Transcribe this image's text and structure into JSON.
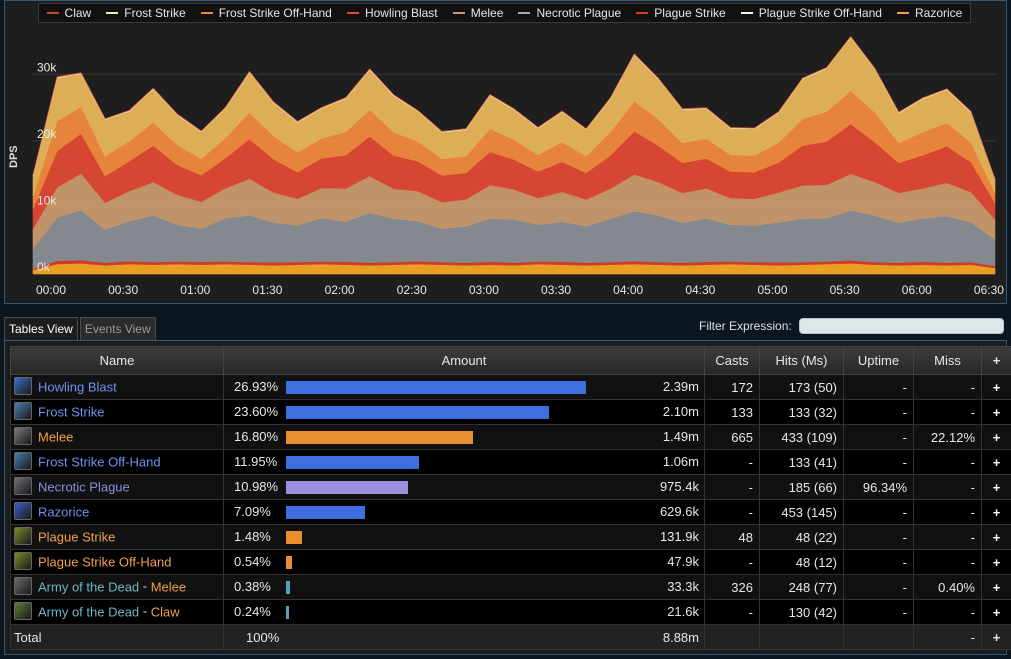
{
  "legend": [
    {
      "label": "Claw",
      "color": "#c9492d"
    },
    {
      "label": "Frost Strike",
      "color": "#f6e9b4"
    },
    {
      "label": "Frost Strike Off-Hand",
      "color": "#f28a3d"
    },
    {
      "label": "Howling Blast",
      "color": "#e04a35"
    },
    {
      "label": "Melee",
      "color": "#c99a6e"
    },
    {
      "label": "Necrotic Plague",
      "color": "#a9a9a9"
    },
    {
      "label": "Plague Strike",
      "color": "#d83b2a"
    },
    {
      "label": "Plague Strike Off-Hand",
      "color": "#f7f3e0"
    },
    {
      "label": "Razorice",
      "color": "#f0a04a"
    }
  ],
  "chart_data": {
    "type": "area",
    "stacked": true,
    "ylabel": "DPS",
    "ylim": [
      0,
      35000
    ],
    "yticks": [
      0,
      10000,
      20000,
      30000
    ],
    "ytick_labels": [
      "0k",
      "10k",
      "20k",
      "30k"
    ],
    "xlim": [
      0,
      400
    ],
    "xticks": [
      0,
      30,
      60,
      90,
      120,
      150,
      180,
      210,
      240,
      270,
      300,
      330,
      360,
      390
    ],
    "xtick_labels": [
      "00:00",
      "00:30",
      "01:00",
      "01:30",
      "02:00",
      "02:30",
      "03:00",
      "03:30",
      "04:00",
      "04:30",
      "05:00",
      "05:30",
      "06:00",
      "06:30"
    ],
    "grid": true,
    "x": [
      0,
      10,
      20,
      30,
      40,
      50,
      60,
      70,
      80,
      90,
      100,
      110,
      120,
      130,
      140,
      150,
      160,
      170,
      180,
      190,
      200,
      210,
      220,
      230,
      240,
      250,
      260,
      270,
      280,
      290,
      300,
      310,
      320,
      330,
      340,
      350,
      360,
      370,
      380,
      390,
      400
    ],
    "series": [
      {
        "name": "Razorice",
        "color": "#f5a623",
        "values": [
          600,
          1500,
          1600,
          1300,
          1500,
          1400,
          1500,
          1400,
          1500,
          1400,
          1300,
          1400,
          1500,
          1400,
          1300,
          1400,
          1500,
          1400,
          1300,
          1400,
          1300,
          1500,
          1400,
          1300,
          1400,
          1500,
          1400,
          1300,
          1400,
          1500,
          1400,
          1300,
          1400,
          1500,
          1600,
          1400,
          1300,
          1400,
          1300,
          1400,
          900
        ]
      },
      {
        "name": "Plague Strike",
        "color": "#d83b2a",
        "values": [
          200,
          500,
          500,
          400,
          450,
          400,
          400,
          450,
          400,
          400,
          450,
          400,
          400,
          450,
          400,
          400,
          450,
          400,
          400,
          450,
          400,
          400,
          450,
          400,
          400,
          450,
          400,
          400,
          450,
          400,
          400,
          450,
          400,
          400,
          450,
          400,
          400,
          450,
          400,
          400,
          300
        ]
      },
      {
        "name": "Necrotic Plague",
        "color": "#8a8f96",
        "values": [
          3000,
          6500,
          7500,
          5000,
          6000,
          7000,
          5500,
          5000,
          6500,
          7000,
          6000,
          5500,
          6500,
          6000,
          7500,
          6500,
          6000,
          5000,
          5500,
          6500,
          6500,
          5500,
          6000,
          5500,
          6500,
          7500,
          7000,
          6000,
          6500,
          5500,
          5500,
          6000,
          6500,
          6500,
          7500,
          7000,
          6000,
          6500,
          7000,
          6000,
          4000
        ]
      },
      {
        "name": "Melee",
        "color": "#c99a6e",
        "values": [
          3000,
          4500,
          5500,
          4000,
          4500,
          5000,
          4500,
          4000,
          4500,
          5500,
          4500,
          4000,
          4500,
          5000,
          5500,
          4500,
          4500,
          4000,
          4000,
          5000,
          4500,
          4000,
          4500,
          4000,
          4500,
          5500,
          5000,
          4500,
          4500,
          4000,
          4000,
          4500,
          5000,
          5000,
          5500,
          5000,
          4500,
          4500,
          5000,
          4500,
          3000
        ]
      },
      {
        "name": "Howling Blast",
        "color": "#e04a35",
        "values": [
          3000,
          5500,
          6000,
          4000,
          4500,
          5500,
          4500,
          4000,
          4500,
          6000,
          5000,
          4000,
          4500,
          5000,
          6000,
          5000,
          4500,
          4000,
          4000,
          5000,
          4500,
          4000,
          4500,
          4000,
          5000,
          6500,
          5500,
          4500,
          4500,
          4000,
          4000,
          4500,
          6000,
          6500,
          7500,
          6000,
          4500,
          5000,
          5500,
          4500,
          2500
        ]
      },
      {
        "name": "Frost Strike Off-Hand",
        "color": "#f28a3d",
        "values": [
          2000,
          4500,
          4000,
          3000,
          3000,
          3500,
          3000,
          2500,
          3000,
          4000,
          3500,
          3000,
          3000,
          3500,
          4000,
          3500,
          3000,
          2500,
          2500,
          3500,
          3000,
          2500,
          3000,
          2500,
          3500,
          4500,
          4000,
          3000,
          3000,
          2500,
          2500,
          3000,
          4000,
          4500,
          5000,
          4500,
          3000,
          3500,
          3500,
          3000,
          1500
        ]
      },
      {
        "name": "Frost Strike",
        "color": "#e7b65a",
        "values": [
          3000,
          6500,
          5000,
          5500,
          4500,
          5000,
          4500,
          4000,
          4500,
          6000,
          5000,
          4500,
          4500,
          5000,
          6000,
          5500,
          4500,
          4000,
          4000,
          5000,
          4500,
          4000,
          4500,
          4000,
          5000,
          7000,
          6000,
          5000,
          4500,
          4000,
          4000,
          4500,
          6000,
          6500,
          8000,
          6500,
          4500,
          5000,
          5000,
          4500,
          2000
        ]
      },
      {
        "name": "Plague Strike Off-Hand",
        "color": "#f7f3e0",
        "values": [
          50,
          100,
          100,
          100,
          100,
          100,
          100,
          100,
          100,
          100,
          100,
          100,
          100,
          100,
          100,
          100,
          100,
          100,
          100,
          100,
          100,
          100,
          100,
          100,
          100,
          100,
          100,
          100,
          100,
          100,
          100,
          100,
          100,
          100,
          100,
          100,
          100,
          100,
          100,
          100,
          50
        ]
      },
      {
        "name": "Claw",
        "color": "#c9492d",
        "values": [
          20,
          50,
          50,
          50,
          50,
          50,
          50,
          50,
          50,
          50,
          50,
          50,
          50,
          50,
          50,
          50,
          50,
          50,
          50,
          50,
          50,
          50,
          50,
          50,
          50,
          50,
          50,
          50,
          50,
          50,
          50,
          50,
          50,
          50,
          50,
          50,
          50,
          50,
          50,
          50,
          20
        ]
      }
    ]
  },
  "tabs": [
    {
      "label": "Tables View",
      "active": true
    },
    {
      "label": "Events View",
      "active": false
    }
  ],
  "filter": {
    "label": "Filter Expression:",
    "value": ""
  },
  "table": {
    "headers": {
      "name": "Name",
      "amount": "Amount",
      "casts": "Casts",
      "hits": "Hits (Ms)",
      "uptime": "Uptime",
      "miss": "Miss",
      "plus": "+"
    },
    "rows": [
      {
        "name": "Howling Blast",
        "name_color": "#6f92f0",
        "icon": "howling-blast-icon",
        "icon_color": "#3a6fc8",
        "pct": "26.93%",
        "fraction": 0.2693,
        "bar_color": "#3f6ee0",
        "amount": "2.39m",
        "casts": "172",
        "hits": "173 (50)",
        "uptime": "-",
        "miss": "-"
      },
      {
        "name": "Frost Strike",
        "name_color": "#6f92f0",
        "icon": "frost-strike-icon",
        "icon_color": "#4a7bb0",
        "pct": "23.60%",
        "fraction": 0.236,
        "bar_color": "#3f6ee0",
        "amount": "2.10m",
        "casts": "133",
        "hits": "133 (32)",
        "uptime": "-",
        "miss": "-"
      },
      {
        "name": "Melee",
        "name_color": "#f0a04a",
        "icon": "melee-icon",
        "icon_color": "#7a7a7a",
        "pct": "16.80%",
        "fraction": 0.168,
        "bar_color": "#e8902f",
        "amount": "1.49m",
        "casts": "665",
        "hits": "433 (109)",
        "uptime": "-",
        "miss": "22.12%"
      },
      {
        "name": "Frost Strike Off-Hand",
        "name_color": "#6f92f0",
        "icon": "frost-strike-off-hand-icon",
        "icon_color": "#4a7bb0",
        "pct": "11.95%",
        "fraction": 0.1195,
        "bar_color": "#3f6ee0",
        "amount": "1.06m",
        "casts": "-",
        "hits": "133 (41)",
        "uptime": "-",
        "miss": "-"
      },
      {
        "name": "Necrotic Plague",
        "name_color": "#8a8fe0",
        "icon": "necrotic-plague-icon",
        "icon_color": "#6d6d78",
        "pct": "10.98%",
        "fraction": 0.1098,
        "bar_color": "#9c8fe0",
        "amount": "975.4k",
        "casts": "-",
        "hits": "185 (66)",
        "uptime": "96.34%",
        "miss": "-"
      },
      {
        "name": "Razorice",
        "name_color": "#6f92f0",
        "icon": "razorice-icon",
        "icon_color": "#3a5fc0",
        "pct": "7.09%",
        "fraction": 0.0709,
        "bar_color": "#3f6ee0",
        "amount": "629.6k",
        "casts": "-",
        "hits": "453 (145)",
        "uptime": "-",
        "miss": "-"
      },
      {
        "name": "Plague Strike",
        "name_color": "#f0a04a",
        "icon": "plague-strike-icon",
        "icon_color": "#7a8a2a",
        "pct": "1.48%",
        "fraction": 0.0148,
        "bar_color": "#e8902f",
        "amount": "131.9k",
        "casts": "48",
        "hits": "48 (22)",
        "uptime": "-",
        "miss": "-"
      },
      {
        "name": "Plague Strike Off-Hand",
        "name_color": "#f0a04a",
        "icon": "plague-strike-off-hand-icon",
        "icon_color": "#7a8a2a",
        "pct": "0.54%",
        "fraction": 0.0054,
        "bar_color": "#e8902f",
        "amount": "47.9k",
        "casts": "-",
        "hits": "48 (12)",
        "uptime": "-",
        "miss": "-"
      },
      {
        "name": "Army of the Dead",
        "name_color": "#6fb4c8",
        "name_suffix": "Melee",
        "suffix_color": "#f0a04a",
        "icon": "army-melee-icon",
        "icon_color": "#6a6a6a",
        "pct": "0.38%",
        "fraction": 0.0038,
        "bar_color": "#5aa0b4",
        "amount": "33.3k",
        "casts": "326",
        "hits": "248 (77)",
        "uptime": "-",
        "miss": "0.40%"
      },
      {
        "name": "Army of the Dead",
        "name_color": "#6fb4c8",
        "name_suffix": "Claw",
        "suffix_color": "#f0a04a",
        "icon": "army-claw-icon",
        "icon_color": "#5c7a3a",
        "pct": "0.24%",
        "fraction": 0.0024,
        "bar_color": "#5aa0b4",
        "amount": "21.6k",
        "casts": "-",
        "hits": "130 (42)",
        "uptime": "-",
        "miss": "-"
      }
    ],
    "total": {
      "label": "Total",
      "pct": "100%",
      "amount": "8.88m",
      "miss": "-"
    }
  }
}
